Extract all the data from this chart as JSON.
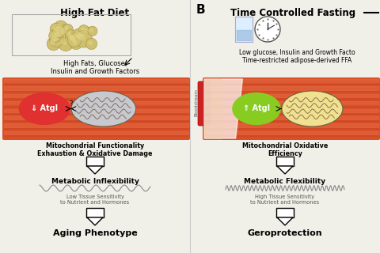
{
  "bg_color": "#f0efe8",
  "left_title": "High Fat Diet",
  "right_title": "Time Controlled Fasting",
  "right_panel_label": "B",
  "left_subtext": "High Fats, Glucose,\nInsulin and Growth Factors",
  "right_subtext": "Low glucose, Insulin and Growth Facto\nTime-restricted adipose-derived FFA",
  "left_atgl": "⇓ Atgl",
  "right_atgl": "⇑ Atgl",
  "left_atgl_color": "#e03030",
  "right_atgl_color": "#88cc22",
  "left_mito_label": "Mitochondrial Functionality\nExhaustion & Oxidative Damage",
  "right_mito_label": "Mitochondrial Oxidative\nEfficiency",
  "left_metab_label": "Metabolic Inflexibility",
  "right_metab_label": "Metabolic Flexibility",
  "left_tissue_label": "Low Tissue Sensitivity\nto Nutrient and Hormones",
  "right_tissue_label": "High Tissue Sensitivity\nto Nutrient and Hormones",
  "left_outcome": "Aging Phenotype",
  "right_outcome": "Geroprotection",
  "muscle_color": "#d94f28",
  "muscle_light": "#e8714a",
  "muscle_fiber": "#c84020",
  "bloodstream_color": "#cc2222",
  "mito_left_fc": "#c8c8d0",
  "mito_right_fc": "#f0e090"
}
